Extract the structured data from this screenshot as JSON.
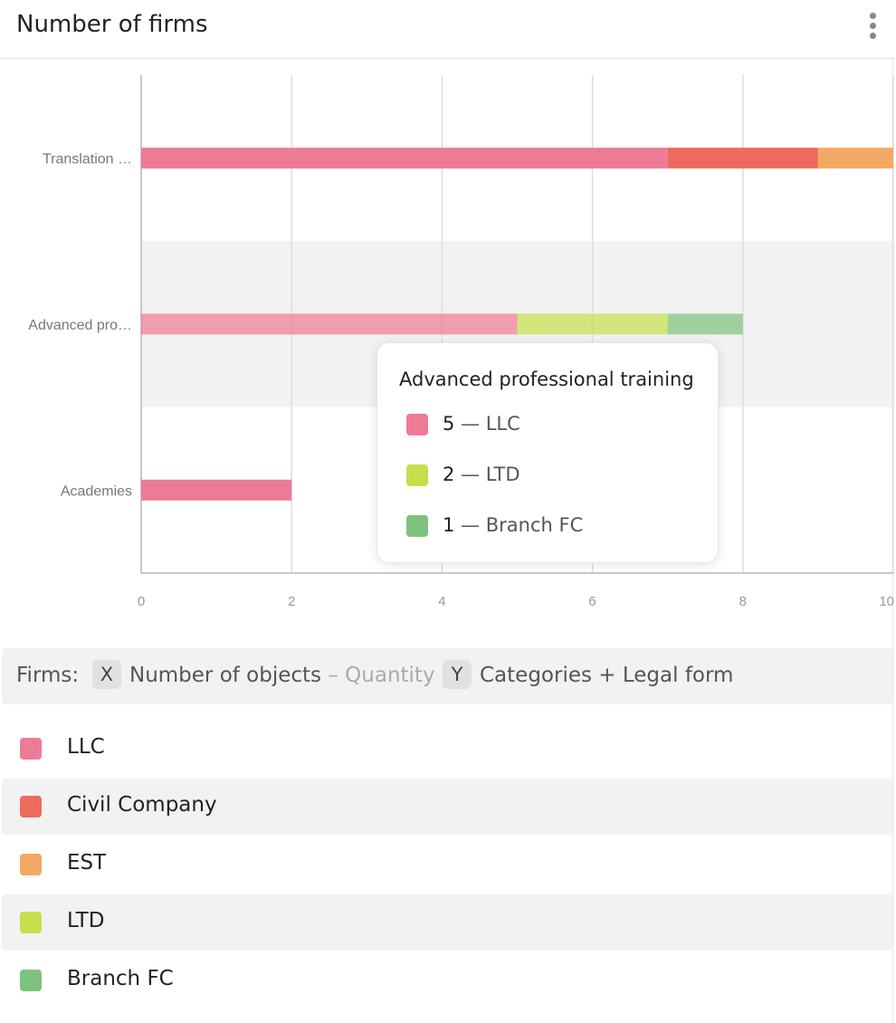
{
  "header": {
    "title": "Number of firms",
    "menu_icon": "kebab-menu-icon"
  },
  "chart_data": {
    "type": "bar",
    "orientation": "horizontal",
    "stacked": true,
    "categories": [
      "Translation …",
      "Advanced pro…",
      "Academies"
    ],
    "category_full_names": [
      "",
      "Advanced professional training",
      ""
    ],
    "xlim": [
      0,
      10
    ],
    "x_ticks": [
      "0",
      "2",
      "4",
      "6",
      "8",
      "10"
    ],
    "grid": true,
    "highlighted_category_index": 1,
    "series": [
      {
        "name": "LLC",
        "color": "#ee7b96",
        "values": [
          7,
          5,
          2
        ]
      },
      {
        "name": "Civil Company",
        "color": "#ef6a5e",
        "values": [
          2,
          0,
          0
        ]
      },
      {
        "name": "EST",
        "color": "#f3a963",
        "values": [
          1,
          0,
          0
        ]
      },
      {
        "name": "LTD",
        "color": "#c6e04c",
        "values": [
          0,
          2,
          0
        ]
      },
      {
        "name": "Branch FC",
        "color": "#7ec27f",
        "values": [
          0,
          1,
          0
        ]
      }
    ]
  },
  "tooltip": {
    "title": "Advanced professional training",
    "rows": [
      {
        "value": "5",
        "sep": " — ",
        "label": "LLC",
        "color": "#ee7b96"
      },
      {
        "value": "2",
        "sep": " — ",
        "label": "LTD",
        "color": "#c6e04c"
      },
      {
        "value": "1",
        "sep": " — ",
        "label": "Branch FC",
        "color": "#7ec27f"
      }
    ]
  },
  "axis_bar": {
    "prefix": "Firms:",
    "x_chip": "X",
    "x_label": "Number of objects",
    "x_suffix": "– Quantity",
    "y_chip": "Y",
    "y_label": "Categories + Legal form"
  },
  "legend": [
    {
      "label": "LLC",
      "color": "#ee7b96"
    },
    {
      "label": "Civil Company",
      "color": "#ef6a5e"
    },
    {
      "label": "EST",
      "color": "#f3a963"
    },
    {
      "label": "LTD",
      "color": "#c6e04c"
    },
    {
      "label": "Branch FC",
      "color": "#7ec27f"
    }
  ]
}
